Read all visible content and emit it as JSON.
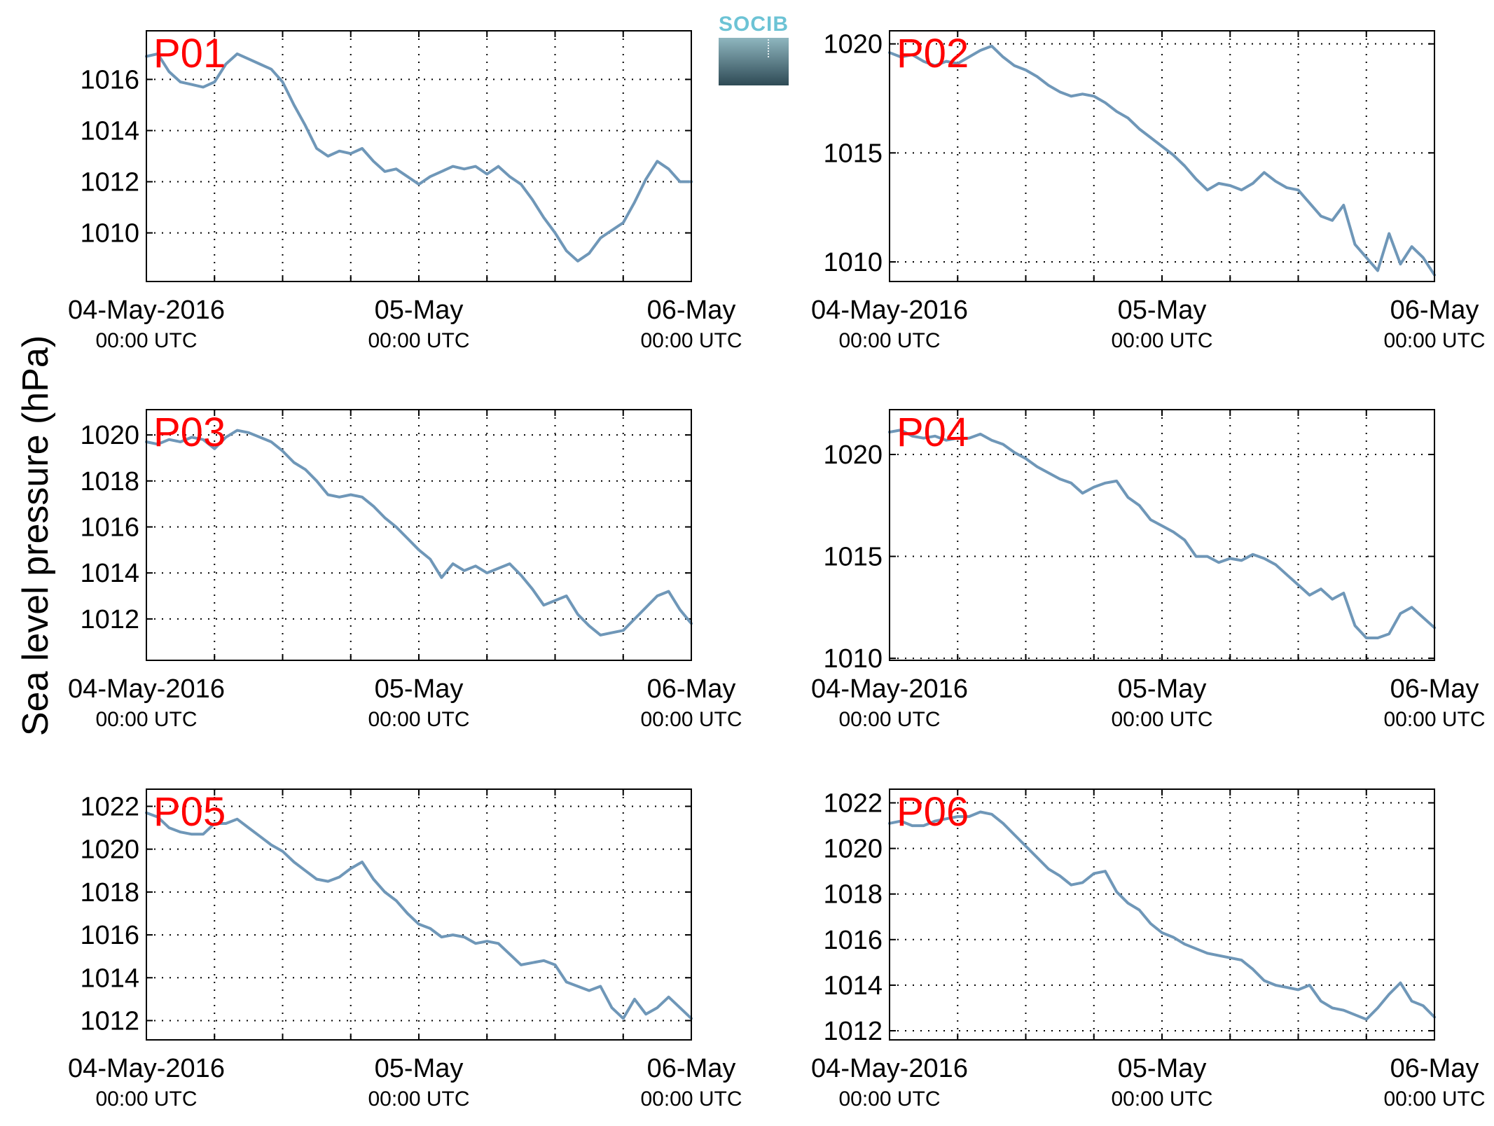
{
  "chart_data": [
    {
      "type": "line",
      "panel_label": "P01",
      "ylim": [
        1008.1,
        1017.9
      ],
      "yticks": [
        1010,
        1012,
        1014,
        1016
      ],
      "xlim": [
        0,
        48
      ],
      "x_grid": [
        6,
        12,
        18,
        24,
        30,
        36,
        42
      ],
      "x_tick_labels": [
        {
          "x": 0,
          "date": "04-May-2016",
          "time": "00:00 UTC"
        },
        {
          "x": 24,
          "date": "05-May",
          "time": "00:00 UTC"
        },
        {
          "x": 48,
          "date": "06-May",
          "time": "00:00 UTC"
        }
      ],
      "series": [
        {
          "x_start": "04-May-2016 00:00 UTC",
          "x_unit": "hours",
          "x": [
            0,
            1,
            2,
            3,
            4,
            5,
            6,
            7,
            8,
            9,
            10,
            11,
            12,
            13,
            14,
            15,
            16,
            17,
            18,
            19,
            20,
            21,
            22,
            23,
            24,
            25,
            26,
            27,
            28,
            29,
            30,
            31,
            32,
            33,
            34,
            35,
            36,
            37,
            38,
            39,
            40,
            41,
            42,
            43,
            44,
            45,
            46,
            47,
            48
          ],
          "values": [
            1016.9,
            1017.0,
            1016.3,
            1015.9,
            1015.8,
            1015.7,
            1015.9,
            1016.6,
            1017.0,
            1016.8,
            1016.6,
            1016.4,
            1015.9,
            1015.0,
            1014.2,
            1013.3,
            1013.0,
            1013.2,
            1013.1,
            1013.3,
            1012.8,
            1012.4,
            1012.5,
            1012.2,
            1011.9,
            1012.2,
            1012.4,
            1012.6,
            1012.5,
            1012.6,
            1012.3,
            1012.6,
            1012.2,
            1011.9,
            1011.3,
            1010.6,
            1010.0,
            1009.3,
            1008.9,
            1009.2,
            1009.8,
            1010.1,
            1010.4,
            1011.2,
            1012.1,
            1012.8,
            1012.5,
            1012.0,
            1012.0
          ]
        }
      ]
    },
    {
      "type": "line",
      "panel_label": "P02",
      "ylim": [
        1009.1,
        1020.6
      ],
      "yticks": [
        1010,
        1015,
        1020
      ],
      "xlim": [
        0,
        48
      ],
      "x_grid": [
        6,
        12,
        18,
        24,
        30,
        36,
        42
      ],
      "x_tick_labels": [
        {
          "x": 0,
          "date": "04-May-2016",
          "time": "00:00 UTC"
        },
        {
          "x": 24,
          "date": "05-May",
          "time": "00:00 UTC"
        },
        {
          "x": 48,
          "date": "06-May",
          "time": "00:00 UTC"
        }
      ],
      "series": [
        {
          "x_start": "04-May-2016 00:00 UTC",
          "x_unit": "hours",
          "x": [
            0,
            1,
            2,
            3,
            4,
            5,
            6,
            7,
            8,
            9,
            10,
            11,
            12,
            13,
            14,
            15,
            16,
            17,
            18,
            19,
            20,
            21,
            22,
            23,
            24,
            25,
            26,
            27,
            28,
            29,
            30,
            31,
            32,
            33,
            34,
            35,
            36,
            37,
            38,
            39,
            40,
            41,
            42,
            43,
            44,
            45,
            46,
            47,
            48
          ],
          "values": [
            1019.6,
            1019.4,
            1019.5,
            1019.2,
            1019.0,
            1019.2,
            1019.1,
            1019.4,
            1019.7,
            1019.9,
            1019.4,
            1019.0,
            1018.8,
            1018.5,
            1018.1,
            1017.8,
            1017.6,
            1017.7,
            1017.6,
            1017.3,
            1016.9,
            1016.6,
            1016.1,
            1015.7,
            1015.3,
            1014.9,
            1014.4,
            1013.8,
            1013.3,
            1013.6,
            1013.5,
            1013.3,
            1013.6,
            1014.1,
            1013.7,
            1013.4,
            1013.3,
            1012.7,
            1012.1,
            1011.9,
            1012.6,
            1010.8,
            1010.2,
            1009.6,
            1011.3,
            1009.9,
            1010.7,
            1010.2,
            1009.4
          ]
        }
      ]
    },
    {
      "type": "line",
      "panel_label": "P03",
      "ylim": [
        1010.2,
        1021.1
      ],
      "yticks": [
        1012,
        1014,
        1016,
        1018,
        1020
      ],
      "xlim": [
        0,
        48
      ],
      "x_grid": [
        6,
        12,
        18,
        24,
        30,
        36,
        42
      ],
      "x_tick_labels": [
        {
          "x": 0,
          "date": "04-May-2016",
          "time": "00:00 UTC"
        },
        {
          "x": 24,
          "date": "05-May",
          "time": "00:00 UTC"
        },
        {
          "x": 48,
          "date": "06-May",
          "time": "00:00 UTC"
        }
      ],
      "series": [
        {
          "x_start": "04-May-2016 00:00 UTC",
          "x_unit": "hours",
          "x": [
            0,
            1,
            2,
            3,
            4,
            5,
            6,
            7,
            8,
            9,
            10,
            11,
            12,
            13,
            14,
            15,
            16,
            17,
            18,
            19,
            20,
            21,
            22,
            23,
            24,
            25,
            26,
            27,
            28,
            29,
            30,
            31,
            32,
            33,
            34,
            35,
            36,
            37,
            38,
            39,
            40,
            41,
            42,
            43,
            44,
            45,
            46,
            47,
            48
          ],
          "values": [
            1019.7,
            1019.6,
            1019.8,
            1019.7,
            1019.9,
            1019.8,
            1019.4,
            1019.9,
            1020.2,
            1020.1,
            1019.9,
            1019.7,
            1019.3,
            1018.8,
            1018.5,
            1018.0,
            1017.4,
            1017.3,
            1017.4,
            1017.3,
            1016.9,
            1016.4,
            1016.0,
            1015.5,
            1015.0,
            1014.6,
            1013.8,
            1014.4,
            1014.1,
            1014.3,
            1014.0,
            1014.2,
            1014.4,
            1013.9,
            1013.3,
            1012.6,
            1012.8,
            1013.0,
            1012.2,
            1011.7,
            1011.3,
            1011.4,
            1011.5,
            1012.0,
            1012.5,
            1013.0,
            1013.2,
            1012.4,
            1011.8
          ]
        }
      ]
    },
    {
      "type": "line",
      "panel_label": "P04",
      "ylim": [
        1009.9,
        1022.2
      ],
      "yticks": [
        1010,
        1015,
        1020
      ],
      "xlim": [
        0,
        48
      ],
      "x_grid": [
        6,
        12,
        18,
        24,
        30,
        36,
        42
      ],
      "x_tick_labels": [
        {
          "x": 0,
          "date": "04-May-2016",
          "time": "00:00 UTC"
        },
        {
          "x": 24,
          "date": "05-May",
          "time": "00:00 UTC"
        },
        {
          "x": 48,
          "date": "06-May",
          "time": "00:00 UTC"
        }
      ],
      "series": [
        {
          "x_start": "04-May-2016 00:00 UTC",
          "x_unit": "hours",
          "x": [
            0,
            1,
            2,
            3,
            4,
            5,
            6,
            7,
            8,
            9,
            10,
            11,
            12,
            13,
            14,
            15,
            16,
            17,
            18,
            19,
            20,
            21,
            22,
            23,
            24,
            25,
            26,
            27,
            28,
            29,
            30,
            31,
            32,
            33,
            34,
            35,
            36,
            37,
            38,
            39,
            40,
            41,
            42,
            43,
            44,
            45,
            46,
            47,
            48
          ],
          "values": [
            1021.1,
            1021.2,
            1020.9,
            1020.8,
            1020.9,
            1020.7,
            1020.8,
            1020.8,
            1021.0,
            1020.7,
            1020.5,
            1020.1,
            1019.8,
            1019.4,
            1019.1,
            1018.8,
            1018.6,
            1018.1,
            1018.4,
            1018.6,
            1018.7,
            1017.9,
            1017.5,
            1016.8,
            1016.5,
            1016.2,
            1015.8,
            1015.0,
            1015.0,
            1014.7,
            1014.9,
            1014.8,
            1015.1,
            1014.9,
            1014.6,
            1014.1,
            1013.6,
            1013.1,
            1013.4,
            1012.9,
            1013.2,
            1011.6,
            1011.0,
            1011.0,
            1011.2,
            1012.2,
            1012.5,
            1012.0,
            1011.5
          ]
        }
      ]
    },
    {
      "type": "line",
      "panel_label": "P05",
      "ylim": [
        1011.1,
        1022.8
      ],
      "yticks": [
        1012,
        1014,
        1016,
        1018,
        1020,
        1022
      ],
      "xlim": [
        0,
        48
      ],
      "x_grid": [
        6,
        12,
        18,
        24,
        30,
        36,
        42
      ],
      "x_tick_labels": [
        {
          "x": 0,
          "date": "04-May-2016",
          "time": "00:00 UTC"
        },
        {
          "x": 24,
          "date": "05-May",
          "time": "00:00 UTC"
        },
        {
          "x": 48,
          "date": "06-May",
          "time": "00:00 UTC"
        }
      ],
      "series": [
        {
          "x_start": "04-May-2016 00:00 UTC",
          "x_unit": "hours",
          "x": [
            0,
            1,
            2,
            3,
            4,
            5,
            6,
            7,
            8,
            9,
            10,
            11,
            12,
            13,
            14,
            15,
            16,
            17,
            18,
            19,
            20,
            21,
            22,
            23,
            24,
            25,
            26,
            27,
            28,
            29,
            30,
            31,
            32,
            33,
            34,
            35,
            36,
            37,
            38,
            39,
            40,
            41,
            42,
            43,
            44,
            45,
            46,
            47,
            48
          ],
          "values": [
            1021.7,
            1021.5,
            1021.0,
            1020.8,
            1020.7,
            1020.7,
            1021.2,
            1021.2,
            1021.4,
            1021.0,
            1020.6,
            1020.2,
            1019.9,
            1019.4,
            1019.0,
            1018.6,
            1018.5,
            1018.7,
            1019.1,
            1019.4,
            1018.6,
            1018.0,
            1017.6,
            1017.0,
            1016.5,
            1016.3,
            1015.9,
            1016.0,
            1015.9,
            1015.6,
            1015.7,
            1015.6,
            1015.1,
            1014.6,
            1014.7,
            1014.8,
            1014.6,
            1013.8,
            1013.6,
            1013.4,
            1013.6,
            1012.6,
            1012.1,
            1013.0,
            1012.3,
            1012.6,
            1013.1,
            1012.6,
            1012.1
          ]
        }
      ]
    },
    {
      "type": "line",
      "panel_label": "P06",
      "ylim": [
        1011.6,
        1022.6
      ],
      "yticks": [
        1012,
        1014,
        1016,
        1018,
        1020,
        1022
      ],
      "xlim": [
        0,
        48
      ],
      "x_grid": [
        6,
        12,
        18,
        24,
        30,
        36,
        42
      ],
      "x_tick_labels": [
        {
          "x": 0,
          "date": "04-May-2016",
          "time": "00:00 UTC"
        },
        {
          "x": 24,
          "date": "05-May",
          "time": "00:00 UTC"
        },
        {
          "x": 48,
          "date": "06-May",
          "time": "00:00 UTC"
        }
      ],
      "series": [
        {
          "x_start": "04-May-2016 00:00 UTC",
          "x_unit": "hours",
          "x": [
            0,
            1,
            2,
            3,
            4,
            5,
            6,
            7,
            8,
            9,
            10,
            11,
            12,
            13,
            14,
            15,
            16,
            17,
            18,
            19,
            20,
            21,
            22,
            23,
            24,
            25,
            26,
            27,
            28,
            29,
            30,
            31,
            32,
            33,
            34,
            35,
            36,
            37,
            38,
            39,
            40,
            41,
            42,
            43,
            44,
            45,
            46,
            47,
            48
          ],
          "values": [
            1021.1,
            1021.2,
            1021.0,
            1021.0,
            1021.2,
            1021.3,
            1021.4,
            1021.4,
            1021.6,
            1021.5,
            1021.1,
            1020.6,
            1020.1,
            1019.6,
            1019.1,
            1018.8,
            1018.4,
            1018.5,
            1018.9,
            1019.0,
            1018.1,
            1017.6,
            1017.3,
            1016.7,
            1016.3,
            1016.1,
            1015.8,
            1015.6,
            1015.4,
            1015.3,
            1015.2,
            1015.1,
            1014.7,
            1014.2,
            1014.0,
            1013.9,
            1013.8,
            1014.0,
            1013.3,
            1013.0,
            1012.9,
            1012.7,
            1012.5,
            1013.0,
            1013.6,
            1014.1,
            1013.3,
            1013.1,
            1012.6
          ]
        }
      ]
    }
  ],
  "figure": {
    "ylabel": "Sea level pressure (hPa)",
    "line_color": "#6f97b8",
    "label_color": "#ff0000",
    "logo_text": "SOCIB"
  }
}
